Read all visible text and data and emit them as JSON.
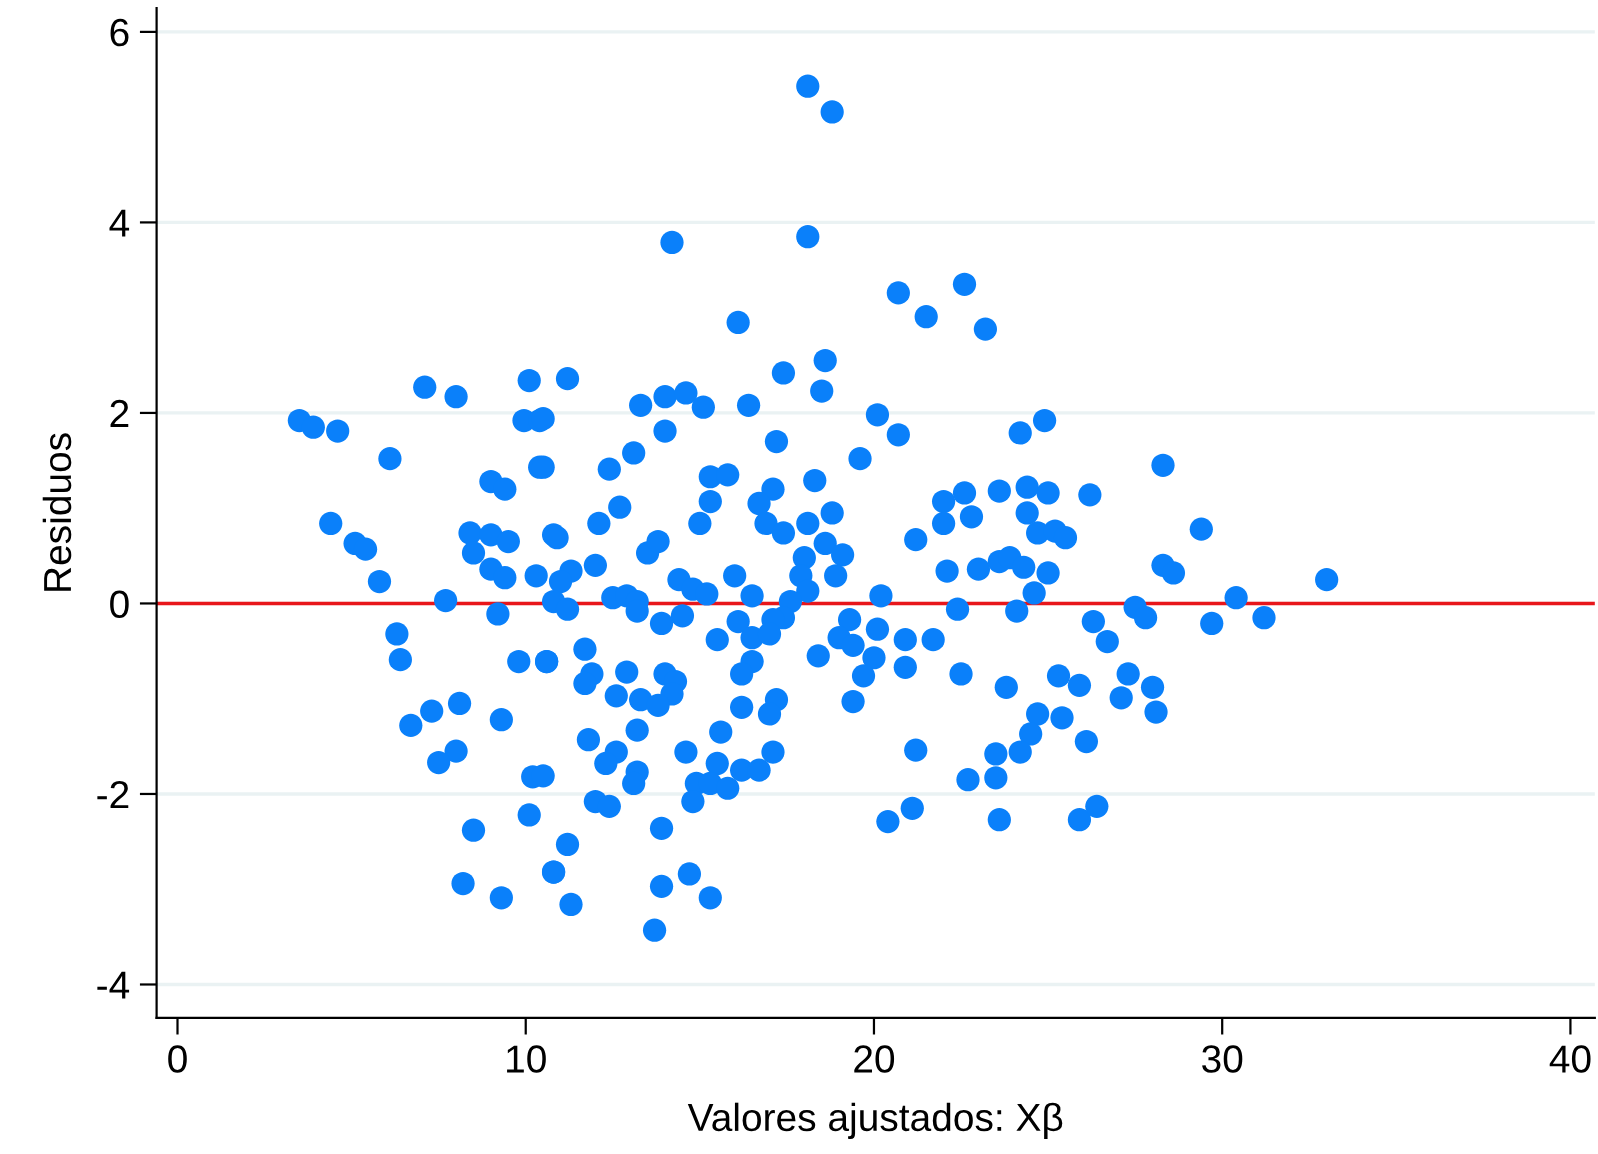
{
  "chart_data": {
    "type": "scatter",
    "xlabel": "Valores ajustados: Xβ",
    "ylabel": "Residuos",
    "xlim": [
      -0.6,
      40.7
    ],
    "ylim": [
      -4.35,
      6.25
    ],
    "xticks": [
      0,
      10,
      20,
      30,
      40
    ],
    "yticks": [
      {
        "value": -4,
        "label": "-4"
      },
      {
        "value": -2,
        "label": "-2"
      },
      0,
      2,
      4,
      6
    ],
    "grid": "y",
    "marker": "circle",
    "legend": false,
    "ref_lines": [
      {
        "axis": "y",
        "value": 0,
        "label": null,
        "color": "#e8161b",
        "line_style": "solid"
      }
    ],
    "series": [
      {
        "color": "#0a80fa",
        "x": [
          3.5,
          3.9,
          4.6,
          6.1,
          7.1,
          8.0,
          10.1,
          9.95,
          10.4,
          10.4,
          4.4,
          5.1,
          5.4,
          5.8,
          7.7,
          8.4,
          9.0,
          9.5,
          8.5,
          9.0,
          9.4,
          10.3,
          9.0,
          9.4,
          10.8,
          9.2,
          6.3,
          6.4,
          9.8,
          10.6,
          8.1,
          7.3,
          6.7,
          9.3,
          8.0,
          7.5,
          10.2,
          10.1,
          8.5,
          10.8,
          8.2,
          9.3,
          14.2,
          18.1,
          20.7,
          16.1,
          11.2,
          17.4,
          18.6,
          18.5,
          13.3,
          14.0,
          14.6,
          15.1,
          16.4,
          20.1,
          20.7,
          10.5,
          14.0,
          17.2,
          19.6,
          13.1,
          12.4,
          10.5,
          15.3,
          15.8,
          18.3,
          17.1,
          15.3,
          16.7,
          12.7,
          18.8,
          12.1,
          15.0,
          16.9,
          17.4,
          18.1,
          10.9,
          13.5,
          13.8,
          18.6,
          18.0,
          19.1,
          11.3,
          12.0,
          11.0,
          14.4,
          14.8,
          16.0,
          17.9,
          18.9,
          15.2,
          16.5,
          18.1,
          20.2,
          12.5,
          12.9,
          13.2,
          10.8,
          11.2,
          13.2,
          17.6,
          17.4,
          14.5,
          13.9,
          16.1,
          17.1,
          19.3,
          15.5,
          16.5,
          17.0,
          19.0,
          20.1,
          19.4,
          10.6,
          11.7,
          18.4,
          20.0,
          16.5,
          11.9,
          12.9,
          14.0,
          11.7,
          14.3,
          16.2,
          19.7,
          12.6,
          13.3,
          14.2,
          13.8,
          16.2,
          17.2,
          17.0,
          19.4,
          13.2,
          15.6,
          11.8,
          12.6,
          12.3,
          13.2,
          14.6,
          15.5,
          16.2,
          16.7,
          17.1,
          10.5,
          13.1,
          14.9,
          15.3,
          15.8,
          14.8,
          12.0,
          12.4,
          13.9,
          20.4,
          11.2,
          10.8,
          13.9,
          14.7,
          15.3,
          11.3,
          13.7,
          18.1,
          18.8,
          22.6,
          21.5,
          23.2,
          24.2,
          24.9,
          28.3,
          22.0,
          22.6,
          23.6,
          24.4,
          25.0,
          26.2,
          22.0,
          22.8,
          24.4,
          21.2,
          24.7,
          25.2,
          25.5,
          29.4,
          22.1,
          23.0,
          23.6,
          23.9,
          24.3,
          25.0,
          28.3,
          28.6,
          33.0,
          24.6,
          30.4,
          22.4,
          24.1,
          27.5,
          27.8,
          29.7,
          31.2,
          26.3,
          26.7,
          20.9,
          21.7,
          20.9,
          22.5,
          23.8,
          25.3,
          25.9,
          27.3,
          28.0,
          27.1,
          28.1,
          24.7,
          25.4,
          24.5,
          26.1,
          21.2,
          23.5,
          24.2,
          22.7,
          23.5,
          21.1,
          23.6,
          25.9,
          26.4
        ],
        "values": [
          1.92,
          1.85,
          1.81,
          1.52,
          2.27,
          2.17,
          2.34,
          1.92,
          1.92,
          1.43,
          0.84,
          0.63,
          0.57,
          0.23,
          0.03,
          0.74,
          0.72,
          0.65,
          0.53,
          0.36,
          0.27,
          0.29,
          1.28,
          1.2,
          0.72,
          -0.11,
          -0.32,
          -0.59,
          -0.61,
          -0.61,
          -1.05,
          -1.13,
          -1.28,
          -1.22,
          -1.55,
          -1.67,
          -1.82,
          -2.22,
          -2.38,
          -2.82,
          -2.94,
          -3.09,
          3.79,
          3.85,
          3.26,
          2.95,
          2.36,
          2.42,
          2.55,
          2.23,
          2.08,
          2.17,
          2.21,
          2.06,
          2.08,
          1.98,
          1.77,
          1.94,
          1.81,
          1.7,
          1.52,
          1.58,
          1.41,
          1.43,
          1.33,
          1.35,
          1.29,
          1.2,
          1.07,
          1.05,
          1.01,
          0.95,
          0.84,
          0.84,
          0.84,
          0.74,
          0.84,
          0.69,
          0.53,
          0.65,
          0.63,
          0.48,
          0.51,
          0.34,
          0.4,
          0.23,
          0.25,
          0.15,
          0.29,
          0.29,
          0.29,
          0.1,
          0.08,
          0.13,
          0.08,
          0.06,
          0.08,
          0.02,
          0.02,
          -0.06,
          -0.08,
          0.02,
          -0.15,
          -0.13,
          -0.21,
          -0.19,
          -0.17,
          -0.17,
          -0.38,
          -0.36,
          -0.32,
          -0.36,
          -0.27,
          -0.44,
          -0.61,
          -0.48,
          -0.55,
          -0.57,
          -0.61,
          -0.74,
          -0.72,
          -0.74,
          -0.84,
          -0.82,
          -0.74,
          -0.76,
          -0.97,
          -1.01,
          -0.95,
          -1.07,
          -1.09,
          -1.01,
          -1.16,
          -1.03,
          -1.33,
          -1.35,
          -1.43,
          -1.56,
          -1.68,
          -1.77,
          -1.56,
          -1.68,
          -1.75,
          -1.75,
          -1.56,
          -1.81,
          -1.89,
          -1.89,
          -1.89,
          -1.94,
          -2.08,
          -2.08,
          -2.13,
          -2.36,
          -2.29,
          -2.53,
          -2.82,
          -2.97,
          -2.84,
          -3.09,
          -3.16,
          -3.43,
          5.43,
          5.16,
          3.35,
          3.01,
          2.88,
          1.79,
          1.92,
          1.45,
          1.07,
          1.16,
          1.18,
          1.22,
          1.16,
          1.14,
          0.84,
          0.91,
          0.95,
          0.67,
          0.74,
          0.76,
          0.69,
          0.78,
          0.34,
          0.36,
          0.44,
          0.48,
          0.38,
          0.32,
          0.4,
          0.32,
          0.25,
          0.11,
          0.06,
          -0.06,
          -0.08,
          -0.04,
          -0.15,
          -0.21,
          -0.15,
          -0.19,
          -0.4,
          -0.38,
          -0.38,
          -0.67,
          -0.74,
          -0.88,
          -0.76,
          -0.86,
          -0.74,
          -0.88,
          -0.99,
          -1.14,
          -1.16,
          -1.2,
          -1.37,
          -1.45,
          -1.54,
          -1.58,
          -1.56,
          -1.85,
          -1.83,
          -2.15,
          -2.27,
          -2.27,
          -2.13
        ]
      }
    ]
  }
}
